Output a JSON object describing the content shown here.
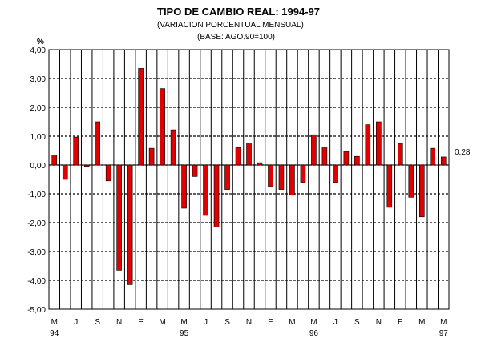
{
  "chart_data": {
    "type": "bar",
    "title": "TIPO DE CAMBIO REAL: 1994-97",
    "subtitle": "(VARIACION PORCENTUAL MENSUAL)",
    "subtitle2": "(BASE: AGO.90=100)",
    "ylabel": "%",
    "ylim": [
      -5,
      4
    ],
    "yticks": [
      "4,00",
      "3,00",
      "2,00",
      "1,00",
      "0,00",
      "-1,00",
      "-2,00",
      "-3,00",
      "-4,00",
      "-5,00"
    ],
    "ytick_values": [
      4,
      3,
      2,
      1,
      0,
      -1,
      -2,
      -3,
      -4,
      -5
    ],
    "grid": true,
    "bar_color": "#e00000",
    "values": [
      0.35,
      -0.5,
      0.97,
      -0.05,
      1.5,
      -0.55,
      -3.65,
      -4.15,
      3.35,
      0.58,
      2.65,
      1.22,
      -1.5,
      -0.4,
      -1.75,
      -2.15,
      -0.85,
      0.6,
      0.77,
      0.08,
      -0.75,
      -0.85,
      -1.05,
      -0.6,
      1.05,
      0.63,
      -0.6,
      0.47,
      0.3,
      1.4,
      1.5,
      -1.47,
      0.75,
      -1.12,
      -1.8,
      0.58,
      0.28
    ],
    "month_labels": [
      "M",
      "J",
      "S",
      "N",
      "E",
      "M",
      "M",
      "J",
      "S",
      "N",
      "E",
      "M",
      "M",
      "J",
      "S",
      "N",
      "E",
      "M",
      "M"
    ],
    "year_labels": [
      {
        "text": "94",
        "bar": 0
      },
      {
        "text": "95",
        "bar": 12
      },
      {
        "text": "96",
        "bar": 24
      },
      {
        "text": "97",
        "bar": 36
      }
    ],
    "last_value_label": "0,28"
  }
}
